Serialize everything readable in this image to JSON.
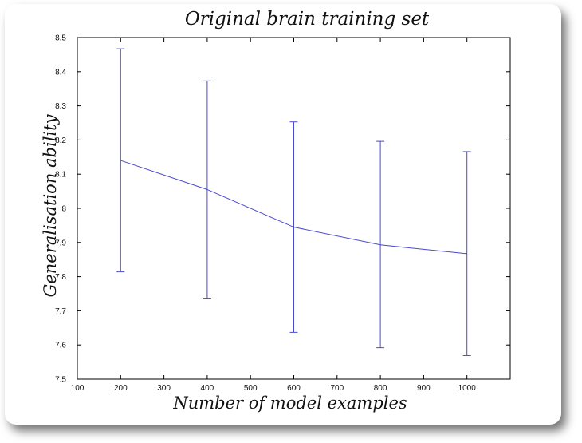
{
  "chart_data": {
    "type": "line",
    "title": "Original brain training set",
    "xlabel": "Number of model examples",
    "ylabel": "Generalisation ability",
    "xlim": [
      100,
      1100
    ],
    "ylim": [
      7.5,
      8.5
    ],
    "xticks": [
      "100",
      "200",
      "300",
      "400",
      "500",
      "600",
      "700",
      "800",
      "900",
      "1000"
    ],
    "yticks": [
      "7.5",
      "7.6",
      "7.7",
      "7.8",
      "7.9",
      "8",
      "8.1",
      "8.2",
      "8.3",
      "8.4",
      "8.5"
    ],
    "grid": false,
    "series": [
      {
        "x": [
          200,
          400,
          600,
          800,
          1000
        ],
        "y": [
          8.14,
          8.055,
          7.945,
          7.893,
          7.867
        ],
        "err_high": [
          8.467,
          8.373,
          8.253,
          8.196,
          8.166
        ],
        "err_low": [
          7.814,
          7.737,
          7.637,
          7.592,
          7.569
        ],
        "color": "#4a4ad0"
      }
    ]
  }
}
